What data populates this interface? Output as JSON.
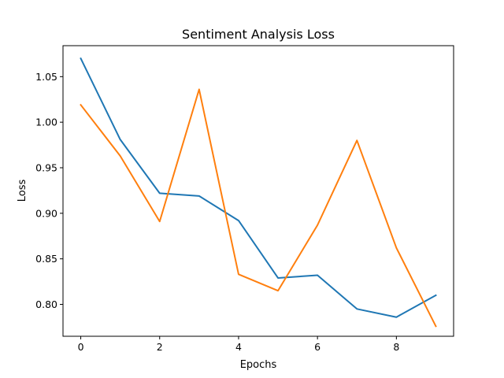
{
  "chart_data": {
    "type": "line",
    "title": "Sentiment Analysis Loss",
    "xlabel": "Epochs",
    "ylabel": "Loss",
    "x": [
      0,
      1,
      2,
      3,
      4,
      5,
      6,
      7,
      8,
      9
    ],
    "xlim": [
      -0.45,
      9.45
    ],
    "ylim": [
      0.765,
      1.084
    ],
    "xticks": [
      0,
      2,
      4,
      6,
      8
    ],
    "yticks": [
      0.8,
      0.85,
      0.9,
      0.95,
      1.0,
      1.05
    ],
    "ytick_labels": [
      "0.80",
      "0.85",
      "0.90",
      "0.95",
      "1.00",
      "1.05"
    ],
    "grid": false,
    "series": [
      {
        "color": "#1f77b4",
        "values": [
          1.07,
          0.981,
          0.922,
          0.919,
          0.892,
          0.829,
          0.832,
          0.795,
          0.786,
          0.81
        ]
      },
      {
        "color": "#ff7f0e",
        "values": [
          1.019,
          0.963,
          0.891,
          1.036,
          0.833,
          0.815,
          0.887,
          0.98,
          0.862,
          0.776
        ]
      }
    ]
  }
}
